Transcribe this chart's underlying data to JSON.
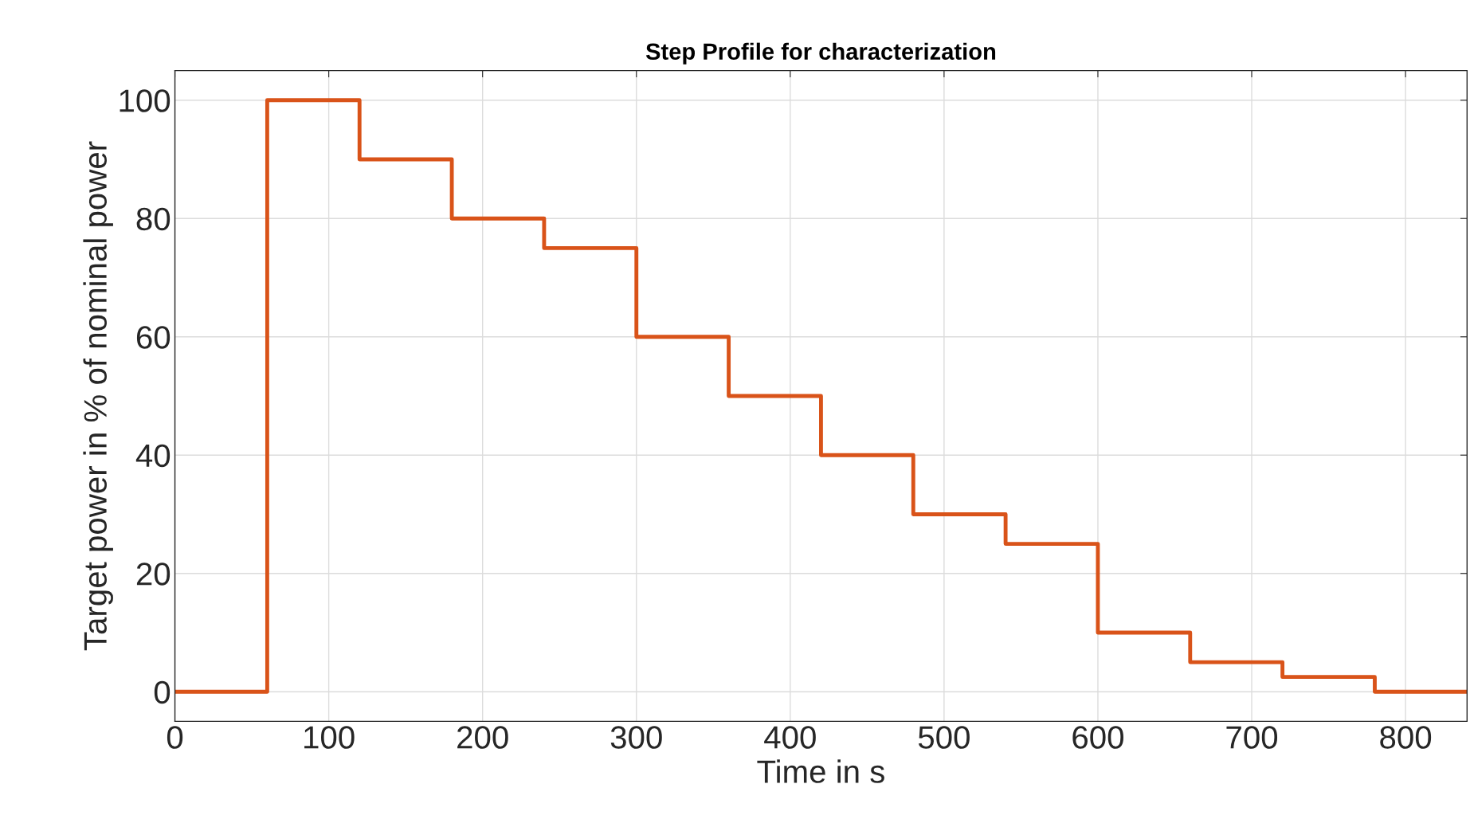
{
  "chart_data": {
    "type": "step",
    "title": "Step Profile for characterization",
    "xlabel": "Time in s",
    "ylabel": "Target power in % of nominal power",
    "x": [
      0,
      60,
      120,
      180,
      240,
      300,
      360,
      420,
      480,
      540,
      600,
      660,
      720,
      780,
      840
    ],
    "series": [
      {
        "color": "#d95319",
        "values": [
          0,
          100,
          90,
          80,
          75,
          60,
          50,
          40,
          30,
          25,
          10,
          5,
          2.5,
          0,
          0
        ]
      }
    ],
    "xlim": [
      0,
      840
    ],
    "ylim": [
      -5,
      105
    ],
    "xticks": [
      0,
      100,
      200,
      300,
      400,
      500,
      600,
      700,
      800
    ],
    "yticks": [
      0,
      20,
      40,
      60,
      80,
      100
    ],
    "grid": true,
    "legend": false,
    "line_style": "solid",
    "marker": "none"
  }
}
